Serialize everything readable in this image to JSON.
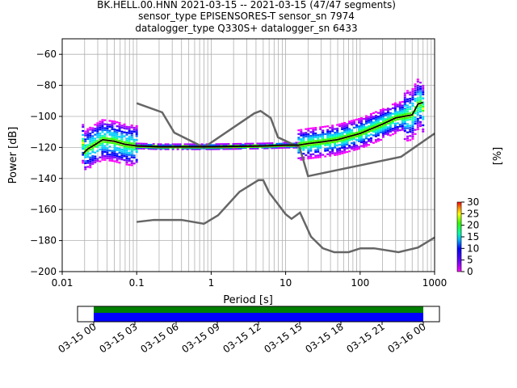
{
  "title_lines": [
    "BK.HELL.00.HNN   2021-03-15 -- 2021-03-15  (47/47 segments)",
    "sensor_type EPISENSORES-T sensor_sn 7974",
    "datalogger_type Q330S+ datalogger_sn 6433"
  ],
  "chart_data": {
    "type": "heatmap",
    "xlabel": "Period [s]",
    "ylabel": "Power [dB]",
    "x_scale": "log",
    "xlim": [
      0.01,
      1000
    ],
    "ylim": [
      -200,
      -50
    ],
    "x_ticks": [
      0.01,
      0.1,
      1,
      10,
      100,
      1000
    ],
    "x_tick_labels": [
      "0.01",
      "0.1",
      "1",
      "10",
      "100",
      "1000"
    ],
    "y_ticks": [
      -200,
      -180,
      -160,
      -140,
      -120,
      -100,
      -80,
      -60
    ],
    "y_tick_labels": [
      "−200",
      "−180",
      "−160",
      "−140",
      "−120",
      "−100",
      "−80",
      "−60"
    ],
    "grid": true,
    "colorbar": {
      "label": "[%]",
      "range": [
        0,
        30
      ],
      "ticks": [
        0,
        5,
        10,
        15,
        20,
        25,
        30
      ],
      "tick_labels": [
        "0",
        "5",
        "10",
        "15",
        "20",
        "25",
        "30"
      ]
    },
    "mean_curve": {
      "color": "#000000",
      "x": [
        0.019,
        0.022,
        0.028,
        0.035,
        0.05,
        0.07,
        0.1,
        0.2,
        0.5,
        1,
        2,
        5,
        10,
        15,
        20,
        30,
        50,
        70,
        100,
        200,
        300,
        500,
        600,
        700
      ],
      "y": [
        -124,
        -121,
        -118,
        -115,
        -116,
        -118,
        -119,
        -119.5,
        -119.5,
        -119.5,
        -119.3,
        -119,
        -118.5,
        -118.5,
        -117.5,
        -116.5,
        -115,
        -113,
        -111,
        -105,
        -101,
        -99,
        -92,
        -91
      ]
    },
    "noise_models": {
      "color": "#666666",
      "high": {
        "x": [
          0.1,
          0.22,
          0.32,
          0.8,
          3.8,
          4.6,
          6.3,
          7.9,
          15.4,
          20,
          354.8,
          1000
        ],
        "y": [
          -91.5,
          -97.4,
          -110.5,
          -120,
          -98,
          -96.5,
          -101,
          -113.5,
          -120,
          -138.5,
          -126,
          -111
        ]
      },
      "low": {
        "x": [
          0.1,
          0.17,
          0.4,
          0.8,
          1.24,
          2.4,
          4.3,
          5,
          6,
          10,
          12,
          15.6,
          21.9,
          31.6,
          45,
          70,
          101,
          154,
          328,
          600,
          1000
        ],
        "y": [
          -168,
          -166.7,
          -166.7,
          -169.2,
          -163.7,
          -148.6,
          -141.1,
          -141.1,
          -149,
          -163,
          -166,
          -162,
          -177.5,
          -185,
          -187.5,
          -187.5,
          -185,
          -185,
          -187.5,
          -184.5,
          -178
        ]
      }
    },
    "density_clusters": [
      {
        "x_range": [
          0.019,
          0.1
        ],
        "y_center": -117,
        "spread": 8
      },
      {
        "x_range": [
          0.1,
          15
        ],
        "y_center": -119.5,
        "spread": 1
      },
      {
        "x_range": [
          15,
          400
        ],
        "y_center": -111,
        "spread": 6
      },
      {
        "x_range": [
          400,
          700
        ],
        "y_center": -95,
        "spread": 10
      }
    ],
    "coverage": {
      "tick_labels": [
        "03-15 00",
        "03-15 03",
        "03-15 06",
        "03-15 09",
        "03-15 12",
        "03-15 15",
        "03-15 18",
        "03-15 21",
        "03-16 00"
      ],
      "data_color": "#008000",
      "used_color": "#0000ff"
    }
  }
}
